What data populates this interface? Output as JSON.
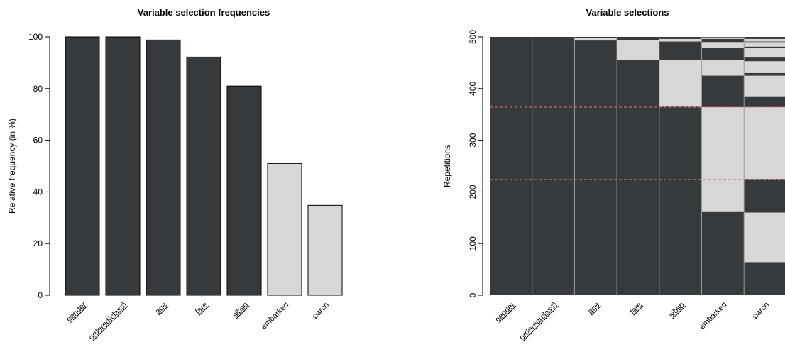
{
  "chart_data": [
    {
      "type": "bar",
      "title": "Variable selection frequencies",
      "xlabel": "",
      "ylabel": "Relative frequency (in %)",
      "ylim": [
        0,
        100
      ],
      "yticks": [
        0,
        20,
        40,
        60,
        80,
        100
      ],
      "categories": [
        "gender",
        "ordered(class)",
        "age",
        "fare",
        "sibsp",
        "embarked",
        "parch"
      ],
      "underlined": [
        true,
        true,
        true,
        true,
        true,
        false,
        false
      ],
      "values": [
        100,
        100,
        98.8,
        92.2,
        81,
        51,
        34.8
      ],
      "colors": [
        "#373a3d",
        "#373a3d",
        "#373a3d",
        "#373a3d",
        "#373a3d",
        "#d6d7d6",
        "#d6d7d6"
      ],
      "grid": false
    },
    {
      "type": "heatmap",
      "title": "Variable selections",
      "xlabel": "",
      "ylabel": "Repetitions",
      "ylim": [
        0,
        500
      ],
      "yticks": [
        0,
        100,
        200,
        300,
        400,
        500
      ],
      "categories": [
        "gender",
        "ordered(class)",
        "age",
        "fare",
        "sibsp",
        "embarked",
        "parch"
      ],
      "underlined": [
        true,
        true,
        true,
        true,
        true,
        false,
        false
      ],
      "selected_color": "#373a3d",
      "unselected_color": "#d6d7d6",
      "reference_lines": [
        224,
        364
      ],
      "reference_line_color": "#e8706e",
      "unselected_ranges": [
        [],
        [],
        [
          [
            493,
            498
          ]
        ],
        [
          [
            455,
            494
          ]
        ],
        [
          [
            365,
            455
          ],
          [
            491,
            496
          ]
        ],
        [
          [
            161,
            364
          ],
          [
            425,
            455
          ],
          [
            478,
            490
          ],
          [
            496,
            499
          ]
        ],
        [
          [
            64,
            160
          ],
          [
            225,
            364
          ],
          [
            385,
            425
          ],
          [
            430,
            453
          ],
          [
            460,
            478
          ],
          [
            481,
            490
          ],
          [
            491,
            496
          ]
        ]
      ],
      "grid": false
    }
  ]
}
